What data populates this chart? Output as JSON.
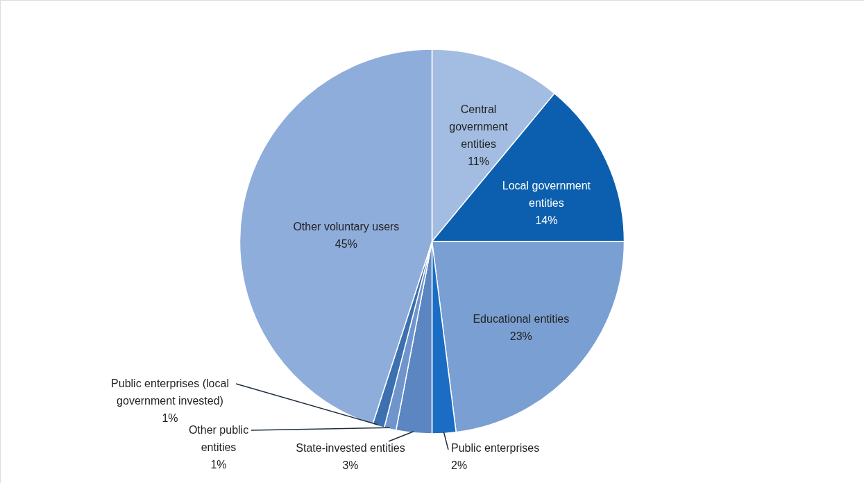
{
  "chart_data": {
    "type": "pie",
    "categories": [
      "Central government entities",
      "Local government entities",
      "Educational entities",
      "Public enterprises",
      "State-invested entities",
      "Other public entities",
      "Public enterprises (local government invested)",
      "Other voluntary users"
    ],
    "values": [
      11,
      14,
      23,
      2,
      3,
      1,
      1,
      45
    ],
    "value_labels": [
      "11%",
      "14%",
      "23%",
      "2%",
      "3%",
      "1%",
      "1%",
      "45%"
    ],
    "colors": [
      "#a3bde2",
      "#0c5fae",
      "#7a9fd2",
      "#1b6dc4",
      "#5b86c2",
      "#6f95cc",
      "#3d70b0",
      "#8eaddb"
    ]
  }
}
